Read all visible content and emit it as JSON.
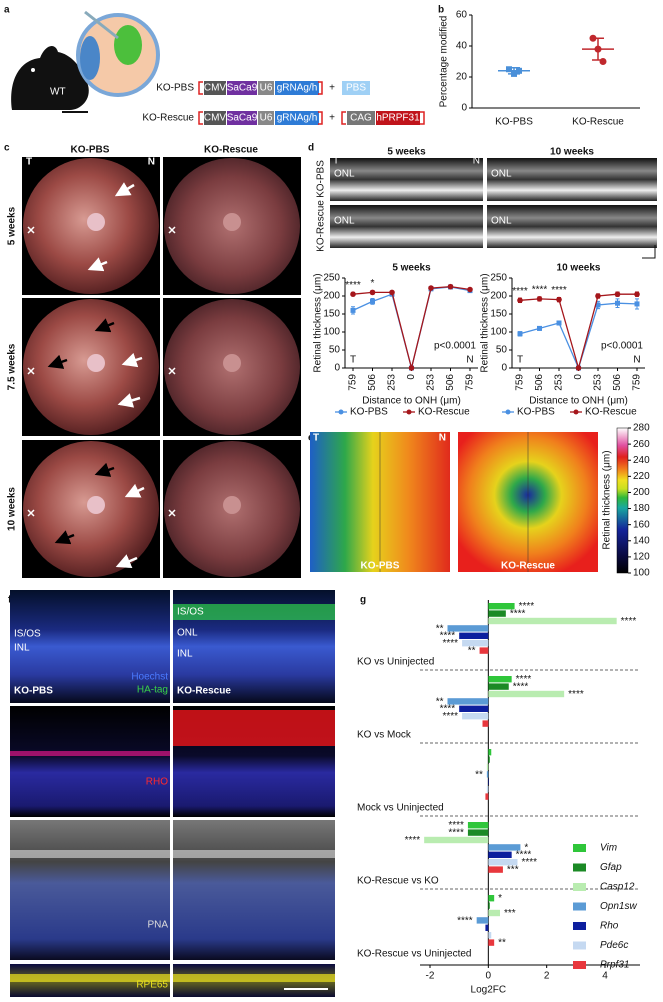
{
  "figure": {
    "panel_letters": [
      "a",
      "b",
      "c",
      "d",
      "e",
      "f",
      "g"
    ]
  },
  "panel_a": {
    "mouse": "WT",
    "rows": [
      {
        "label": "KO-PBS",
        "parts": [
          "CMV",
          "SaCa9",
          "U6",
          "gRNAg/h"
        ],
        "plus": "+",
        "extra": [
          "PBS"
        ]
      },
      {
        "label": "KO-Rescue",
        "parts": [
          "CMV",
          "SaCa9",
          "U6",
          "gRNAg/h"
        ],
        "plus": "+",
        "extra": [
          "CAG",
          "hPRPF31"
        ]
      }
    ]
  },
  "panel_c": {
    "columns": [
      "KO-PBS",
      "KO-Rescue"
    ],
    "rows": [
      "5 weeks",
      "7.5 weeks",
      "10 weeks"
    ],
    "temporal": "T",
    "nasal": "N"
  },
  "panel_d_images": {
    "columns": [
      "5 weeks",
      "10 weeks"
    ],
    "rows": [
      "KO-PBS",
      "KO-Rescue"
    ],
    "layer": "ONL",
    "temporal": "T",
    "nasal": "N"
  },
  "panel_e": {
    "maps": [
      "KO-PBS",
      "KO-Rescue"
    ],
    "temporal": "T",
    "nasal": "N",
    "colorbar_label": "Retinal thickness (μm)",
    "colorbar_ticks": [
      100,
      120,
      140,
      160,
      180,
      200,
      220,
      240,
      260,
      280
    ]
  },
  "panel_f": {
    "layers_left": [
      "IS/OS",
      "INL"
    ],
    "layers_right": [
      "IS/OS",
      "ONL",
      "INL"
    ],
    "conditions": [
      "KO-PBS",
      "KO-Rescue"
    ],
    "stains": [
      "Hoechst",
      "HA-tag",
      "RHO",
      "PNA",
      "RPE65"
    ]
  },
  "chart_data": [
    {
      "type": "dot",
      "ylabel": "Percentage modified",
      "categories": [
        "KO-PBS",
        "KO-Rescue"
      ],
      "values": [
        24,
        38
      ],
      "errors": [
        2,
        7
      ],
      "points": [
        [
          25,
          22,
          24
        ],
        [
          45,
          38,
          30
        ]
      ],
      "colors": [
        "#4a90d9",
        "#c0282d"
      ],
      "markers": [
        "square",
        "circle"
      ],
      "ylim": [
        0,
        60
      ],
      "yticks": [
        0,
        20,
        40,
        60
      ]
    },
    {
      "type": "line",
      "title": "5 weeks",
      "ylabel": "Retinal thickness (μm)",
      "xlabel": "Distance to ONH (μm)",
      "categories": [
        "759",
        "506",
        "253",
        "0",
        "253",
        "506",
        "759"
      ],
      "series": [
        {
          "name": "KO-PBS",
          "color": "#4a90e2",
          "values": [
            160,
            185,
            205,
            0,
            220,
            225,
            215
          ],
          "errors": [
            10,
            8,
            5,
            0,
            5,
            5,
            5
          ]
        },
        {
          "name": "KO-Rescue",
          "color": "#a5161b",
          "values": [
            205,
            210,
            210,
            0,
            222,
            226,
            218
          ],
          "errors": [
            5,
            5,
            4,
            0,
            4,
            4,
            4
          ]
        }
      ],
      "significance": [
        "****",
        "*",
        null,
        null,
        null,
        null,
        null
      ],
      "annotations": {
        "left": "T",
        "right": "N",
        "p_value": "p<0.0001"
      },
      "ylim": [
        0,
        250
      ],
      "yticks": [
        0,
        50,
        100,
        150,
        200,
        250
      ]
    },
    {
      "type": "line",
      "title": "10 weeks",
      "ylabel": "Retinal thickness (μm)",
      "xlabel": "Distance to ONH (μm)",
      "categories": [
        "759",
        "506",
        "253",
        "0",
        "253",
        "506",
        "759"
      ],
      "series": [
        {
          "name": "KO-PBS",
          "color": "#4a90e2",
          "values": [
            95,
            110,
            125,
            0,
            175,
            180,
            178
          ],
          "errors": [
            6,
            5,
            5,
            0,
            10,
            12,
            14
          ]
        },
        {
          "name": "KO-Rescue",
          "color": "#a5161b",
          "values": [
            188,
            192,
            190,
            0,
            200,
            205,
            205
          ],
          "errors": [
            6,
            6,
            6,
            0,
            6,
            6,
            6
          ]
        }
      ],
      "significance": [
        "****",
        "****",
        "****",
        null,
        null,
        null,
        null
      ],
      "annotations": {
        "left": "T",
        "right": "N",
        "p_value": "p<0.0001"
      },
      "ylim": [
        0,
        250
      ],
      "yticks": [
        0,
        50,
        100,
        150,
        200,
        250
      ]
    },
    {
      "type": "hbar",
      "xlabel": "Log2FC",
      "categories": [
        "KO vs Uninjected",
        "KO vs Mock",
        "Mock vs Uninjected",
        "KO-Rescue vs KO",
        "KO-Rescue vs Uninjected"
      ],
      "series": [
        {
          "name": "Vim",
          "color": "#2fc63a",
          "values": [
            0.9,
            0.8,
            0.1,
            -0.7,
            0.2
          ],
          "significance": [
            "****",
            "****",
            null,
            "****",
            "*"
          ]
        },
        {
          "name": "Gfap",
          "color": "#1b8a25",
          "values": [
            0.6,
            0.7,
            0.05,
            -0.7,
            0.05
          ],
          "significance": [
            "****",
            "****",
            null,
            "****",
            null
          ]
        },
        {
          "name": "Casp12",
          "color": "#b9ecb0",
          "values": [
            4.4,
            2.6,
            -0.05,
            -2.2,
            0.4
          ],
          "significance": [
            "****",
            "****",
            null,
            "****",
            "***"
          ]
        },
        {
          "name": "Opn1sw",
          "color": "#5b9bd5",
          "values": [
            -1.4,
            -1.4,
            -0.05,
            1.1,
            -0.4
          ],
          "significance": [
            "**",
            "**",
            "**",
            "*",
            "****"
          ]
        },
        {
          "name": "Rho",
          "color": "#0d1f9e",
          "values": [
            -1.0,
            -1.0,
            0.02,
            0.8,
            -0.1
          ],
          "significance": [
            "****",
            "****",
            null,
            "****",
            null
          ]
        },
        {
          "name": "Pde6c",
          "color": "#c5d9f1",
          "values": [
            -0.9,
            -0.9,
            -0.05,
            1.0,
            0.1
          ],
          "significance": [
            "****",
            "****",
            null,
            "****",
            null
          ]
        },
        {
          "name": "Prpf31",
          "color": "#e8373d",
          "values": [
            -0.3,
            -0.2,
            -0.1,
            0.5,
            0.2
          ],
          "significance": [
            "**",
            null,
            null,
            "***",
            "**"
          ]
        }
      ],
      "xlim": [
        -3.2,
        5.2
      ],
      "xticks": [
        -2,
        0,
        2,
        4
      ]
    }
  ]
}
